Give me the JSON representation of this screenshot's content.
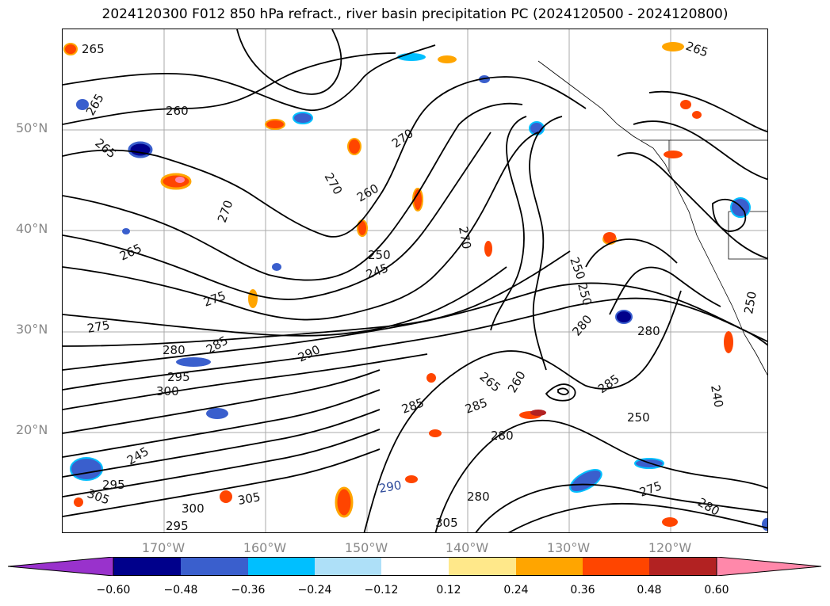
{
  "title": "2024120300 F012 850 hPa refract., river basin precipitation PC (2024120500 - 2024120800)",
  "map": {
    "lat_labels": [
      "50°N",
      "40°N",
      "30°N",
      "20°N"
    ],
    "lon_labels": [
      "170°W",
      "160°W",
      "150°W",
      "140°W",
      "130°W",
      "120°W"
    ],
    "grid": true,
    "contour_labels": [
      "265",
      "260",
      "265",
      "265",
      "265",
      "270",
      "270",
      "270",
      "260",
      "250",
      "245",
      "265",
      "275",
      "275",
      "280",
      "285",
      "290",
      "295",
      "300",
      "280",
      "270",
      "265",
      "260",
      "285",
      "285",
      "280",
      "250",
      "280",
      "285",
      "250",
      "240",
      "295",
      "300",
      "305",
      "290",
      "305",
      "295",
      "305",
      "280",
      "275",
      "280",
      "250",
      "245",
      "250"
    ]
  },
  "colorbar": {
    "ticks": [
      "−0.60",
      "−0.48",
      "−0.36",
      "−0.24",
      "−0.12",
      "0.12",
      "0.24",
      "0.36",
      "0.48",
      "0.60"
    ],
    "colors": [
      "#9932cc",
      "#00008b",
      "#3a5fcd",
      "#00bfff",
      "#aee0f8",
      "#ffffff",
      "#ffe88a",
      "#ffa500",
      "#ff4500",
      "#b22222",
      "#ff88aa",
      "#ff88aa"
    ],
    "extend": "both"
  }
}
